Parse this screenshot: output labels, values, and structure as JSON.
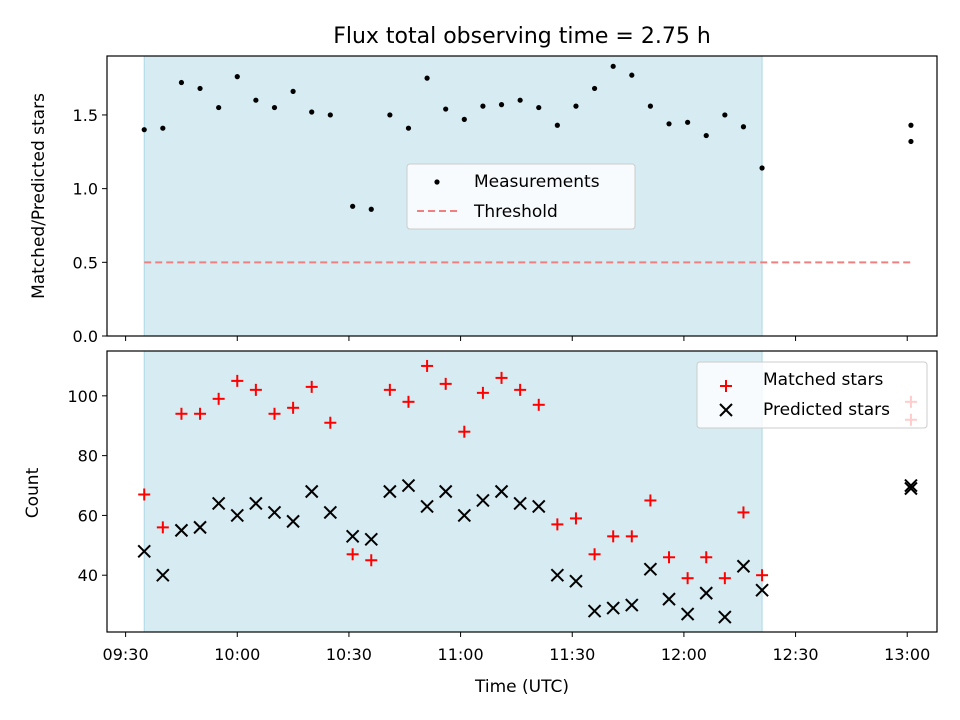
{
  "chart_data": [
    {
      "type": "scatter",
      "title": "Flux total observing time = 2.75 h",
      "xlabel": "",
      "ylabel": "Matched/Predicted stars",
      "ylim": [
        0.0,
        1.9
      ],
      "yticks": [
        "0.0",
        "0.5",
        "1.0",
        "1.5"
      ],
      "xlim": [
        "09:25",
        "13:08"
      ],
      "shaded_span": {
        "start": "09:35",
        "end": "12:21",
        "color": "#add8e6"
      },
      "legend_position": "center",
      "series": [
        {
          "name": "Measurements",
          "marker": "dot",
          "color": "#000000",
          "points": [
            {
              "t": "09:35",
              "y": 1.4
            },
            {
              "t": "09:40",
              "y": 1.41
            },
            {
              "t": "09:45",
              "y": 1.72
            },
            {
              "t": "09:50",
              "y": 1.68
            },
            {
              "t": "09:55",
              "y": 1.55
            },
            {
              "t": "10:00",
              "y": 1.76
            },
            {
              "t": "10:05",
              "y": 1.6
            },
            {
              "t": "10:10",
              "y": 1.55
            },
            {
              "t": "10:15",
              "y": 1.66
            },
            {
              "t": "10:20",
              "y": 1.52
            },
            {
              "t": "10:25",
              "y": 1.5
            },
            {
              "t": "10:31",
              "y": 0.88
            },
            {
              "t": "10:36",
              "y": 0.86
            },
            {
              "t": "10:41",
              "y": 1.5
            },
            {
              "t": "10:46",
              "y": 1.41
            },
            {
              "t": "10:51",
              "y": 1.75
            },
            {
              "t": "10:56",
              "y": 1.54
            },
            {
              "t": "11:01",
              "y": 1.47
            },
            {
              "t": "11:06",
              "y": 1.56
            },
            {
              "t": "11:11",
              "y": 1.57
            },
            {
              "t": "11:16",
              "y": 1.6
            },
            {
              "t": "11:21",
              "y": 1.55
            },
            {
              "t": "11:26",
              "y": 1.43
            },
            {
              "t": "11:31",
              "y": 1.56
            },
            {
              "t": "11:36",
              "y": 1.68
            },
            {
              "t": "11:41",
              "y": 1.83
            },
            {
              "t": "11:46",
              "y": 1.77
            },
            {
              "t": "11:51",
              "y": 1.56
            },
            {
              "t": "11:56",
              "y": 1.44
            },
            {
              "t": "12:01",
              "y": 1.45
            },
            {
              "t": "12:06",
              "y": 1.36
            },
            {
              "t": "12:11",
              "y": 1.5
            },
            {
              "t": "12:16",
              "y": 1.42
            },
            {
              "t": "12:21",
              "y": 1.14
            },
            {
              "t": "13:01",
              "y": 1.43
            },
            {
              "t": "13:01",
              "y": 1.32
            }
          ]
        },
        {
          "name": "Threshold",
          "marker": "dashed-line",
          "color": "#f08080",
          "points": [
            {
              "t": "09:35",
              "y": 0.5
            },
            {
              "t": "13:01",
              "y": 0.5
            }
          ]
        }
      ]
    },
    {
      "type": "scatter",
      "title": "",
      "xlabel": "Time (UTC)",
      "ylabel": "Count",
      "ylim": [
        21,
        115
      ],
      "yticks": [
        "40",
        "60",
        "80",
        "100"
      ],
      "xlim": [
        "09:25",
        "13:08"
      ],
      "xticks": [
        "09:30",
        "10:00",
        "10:30",
        "11:00",
        "11:30",
        "12:00",
        "12:30",
        "13:00"
      ],
      "shaded_span": {
        "start": "09:35",
        "end": "12:21",
        "color": "#add8e6"
      },
      "legend_position": "upper right",
      "series": [
        {
          "name": "Matched stars",
          "marker": "plus",
          "color": "#ff0000",
          "points": [
            {
              "t": "09:35",
              "y": 67
            },
            {
              "t": "09:40",
              "y": 56
            },
            {
              "t": "09:45",
              "y": 94
            },
            {
              "t": "09:50",
              "y": 94
            },
            {
              "t": "09:55",
              "y": 99
            },
            {
              "t": "10:00",
              "y": 105
            },
            {
              "t": "10:05",
              "y": 102
            },
            {
              "t": "10:10",
              "y": 94
            },
            {
              "t": "10:15",
              "y": 96
            },
            {
              "t": "10:20",
              "y": 103
            },
            {
              "t": "10:25",
              "y": 91
            },
            {
              "t": "10:31",
              "y": 47
            },
            {
              "t": "10:36",
              "y": 45
            },
            {
              "t": "10:41",
              "y": 102
            },
            {
              "t": "10:46",
              "y": 98
            },
            {
              "t": "10:51",
              "y": 110
            },
            {
              "t": "10:56",
              "y": 104
            },
            {
              "t": "11:01",
              "y": 88
            },
            {
              "t": "11:06",
              "y": 101
            },
            {
              "t": "11:11",
              "y": 106
            },
            {
              "t": "11:16",
              "y": 102
            },
            {
              "t": "11:21",
              "y": 97
            },
            {
              "t": "11:26",
              "y": 57
            },
            {
              "t": "11:31",
              "y": 59
            },
            {
              "t": "11:36",
              "y": 47
            },
            {
              "t": "11:41",
              "y": 53
            },
            {
              "t": "11:46",
              "y": 53
            },
            {
              "t": "11:51",
              "y": 65
            },
            {
              "t": "11:56",
              "y": 46
            },
            {
              "t": "12:01",
              "y": 39
            },
            {
              "t": "12:06",
              "y": 46
            },
            {
              "t": "12:11",
              "y": 39
            },
            {
              "t": "12:16",
              "y": 61
            },
            {
              "t": "12:21",
              "y": 40
            },
            {
              "t": "13:01",
              "y": 98
            },
            {
              "t": "13:01",
              "y": 92
            }
          ]
        },
        {
          "name": "Predicted stars",
          "marker": "x",
          "color": "#000000",
          "points": [
            {
              "t": "09:35",
              "y": 48
            },
            {
              "t": "09:40",
              "y": 40
            },
            {
              "t": "09:45",
              "y": 55
            },
            {
              "t": "09:50",
              "y": 56
            },
            {
              "t": "09:55",
              "y": 64
            },
            {
              "t": "10:00",
              "y": 60
            },
            {
              "t": "10:05",
              "y": 64
            },
            {
              "t": "10:10",
              "y": 61
            },
            {
              "t": "10:15",
              "y": 58
            },
            {
              "t": "10:20",
              "y": 68
            },
            {
              "t": "10:25",
              "y": 61
            },
            {
              "t": "10:31",
              "y": 53
            },
            {
              "t": "10:36",
              "y": 52
            },
            {
              "t": "10:41",
              "y": 68
            },
            {
              "t": "10:46",
              "y": 70
            },
            {
              "t": "10:51",
              "y": 63
            },
            {
              "t": "10:56",
              "y": 68
            },
            {
              "t": "11:01",
              "y": 60
            },
            {
              "t": "11:06",
              "y": 65
            },
            {
              "t": "11:11",
              "y": 68
            },
            {
              "t": "11:16",
              "y": 64
            },
            {
              "t": "11:21",
              "y": 63
            },
            {
              "t": "11:26",
              "y": 40
            },
            {
              "t": "11:31",
              "y": 38
            },
            {
              "t": "11:36",
              "y": 28
            },
            {
              "t": "11:41",
              "y": 29
            },
            {
              "t": "11:46",
              "y": 30
            },
            {
              "t": "11:51",
              "y": 42
            },
            {
              "t": "11:56",
              "y": 32
            },
            {
              "t": "12:01",
              "y": 27
            },
            {
              "t": "12:06",
              "y": 34
            },
            {
              "t": "12:11",
              "y": 26
            },
            {
              "t": "12:16",
              "y": 43
            },
            {
              "t": "12:21",
              "y": 35
            },
            {
              "t": "13:01",
              "y": 70
            },
            {
              "t": "13:01",
              "y": 69
            }
          ]
        }
      ]
    }
  ]
}
